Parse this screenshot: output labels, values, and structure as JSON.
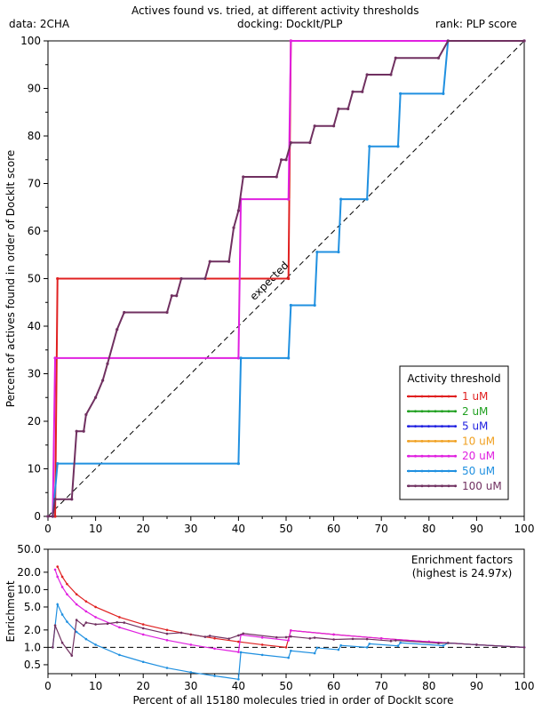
{
  "header": {
    "title": "Actives found vs. tried, at different activity thresholds",
    "data_label": "data: 2CHA",
    "docking_label": "docking: DockIt/PLP",
    "rank_label": "rank: PLP score"
  },
  "chart_data": [
    {
      "type": "line",
      "xlabel": "",
      "ylabel": "Percent of actives found in order of DockIt score",
      "xlim": [
        0,
        100
      ],
      "ylim": [
        0,
        100
      ],
      "xticks": [
        "0",
        "10",
        "20",
        "30",
        "40",
        "50",
        "60",
        "70",
        "80",
        "90",
        "100"
      ],
      "yticks": [
        "0",
        "10",
        "20",
        "30",
        "40",
        "50",
        "60",
        "70",
        "80",
        "90",
        "100"
      ],
      "annotation": "expected",
      "legend_title": "Activity threshold",
      "legend_placement": "bottom-right",
      "series": [
        {
          "name": "1 uM",
          "color": "#e02020",
          "points": [
            [
              0,
              0
            ],
            [
              1.5,
              0
            ],
            [
              2,
              50
            ],
            [
              50.5,
              50
            ],
            [
              51,
              100
            ],
            [
              100,
              100
            ]
          ]
        },
        {
          "name": "2 uM",
          "color": "#20a020",
          "points": []
        },
        {
          "name": "5 uM",
          "color": "#2020e0",
          "points": []
        },
        {
          "name": "10 uM",
          "color": "#f0a020",
          "points": []
        },
        {
          "name": "20 uM",
          "color": "#e020e0",
          "points": [
            [
              0,
              0
            ],
            [
              1,
              0
            ],
            [
              1.5,
              33.3
            ],
            [
              40,
              33.3
            ],
            [
              40.5,
              66.7
            ],
            [
              50.5,
              66.7
            ],
            [
              51,
              100
            ],
            [
              100,
              100
            ]
          ]
        },
        {
          "name": "50 uM",
          "color": "#2090e0",
          "points": [
            [
              0,
              0
            ],
            [
              1,
              0
            ],
            [
              2,
              11.1
            ],
            [
              40,
              11.1
            ],
            [
              40.5,
              33.3
            ],
            [
              50.5,
              33.3
            ],
            [
              51,
              44.4
            ],
            [
              56,
              44.4
            ],
            [
              56.5,
              55.6
            ],
            [
              61,
              55.6
            ],
            [
              61.5,
              66.7
            ],
            [
              67,
              66.7
            ],
            [
              67.5,
              77.8
            ],
            [
              73.5,
              77.8
            ],
            [
              74,
              88.9
            ],
            [
              83,
              88.9
            ],
            [
              84,
              100
            ],
            [
              100,
              100
            ]
          ]
        },
        {
          "name": "100 uM",
          "color": "#703060",
          "points": [
            [
              0,
              0
            ],
            [
              1,
              0
            ],
            [
              1.5,
              3.6
            ],
            [
              5,
              3.6
            ],
            [
              6,
              17.9
            ],
            [
              7.5,
              17.9
            ],
            [
              8,
              21.4
            ],
            [
              10,
              25
            ],
            [
              11.5,
              28.6
            ],
            [
              12.5,
              32.1
            ],
            [
              14.5,
              39.3
            ],
            [
              16,
              42.9
            ],
            [
              25,
              42.9
            ],
            [
              26,
              46.4
            ],
            [
              27,
              46.4
            ],
            [
              28,
              50
            ],
            [
              33,
              50
            ],
            [
              34,
              53.6
            ],
            [
              38,
              53.6
            ],
            [
              39,
              60.7
            ],
            [
              40,
              64.3
            ],
            [
              41,
              71.4
            ],
            [
              48,
              71.4
            ],
            [
              49,
              75
            ],
            [
              50,
              75
            ],
            [
              51,
              78.6
            ],
            [
              55,
              78.6
            ],
            [
              56,
              82.1
            ],
            [
              60,
              82.1
            ],
            [
              61,
              85.7
            ],
            [
              63,
              85.7
            ],
            [
              64,
              89.3
            ],
            [
              66,
              89.3
            ],
            [
              67,
              92.9
            ],
            [
              72,
              92.9
            ],
            [
              73,
              96.4
            ],
            [
              82,
              96.4
            ],
            [
              84,
              100
            ],
            [
              100,
              100
            ]
          ]
        }
      ]
    },
    {
      "type": "line",
      "title": "Enrichment factors",
      "subtitle": "(highest is 24.97x)",
      "xlabel": "Percent of all 15180 molecules tried in order of DockIt score",
      "ylabel": "Enrichment",
      "xlim": [
        0,
        100
      ],
      "ylim": [
        0.35,
        50
      ],
      "yscale": "log",
      "xticks": [
        "0",
        "10",
        "20",
        "30",
        "40",
        "50",
        "60",
        "70",
        "80",
        "90",
        "100"
      ],
      "yticks": [
        "0.5",
        "1.0",
        "2.0",
        "5.0",
        "10.0",
        "20.0",
        "50.0"
      ],
      "series": [
        {
          "name": "1 uM",
          "color": "#e02020",
          "points": [
            [
              2,
              24.97
            ],
            [
              3,
              16.7
            ],
            [
              4,
              12.5
            ],
            [
              6,
              8.3
            ],
            [
              8,
              6.25
            ],
            [
              10,
              5
            ],
            [
              15,
              3.33
            ],
            [
              20,
              2.5
            ],
            [
              25,
              2
            ],
            [
              30,
              1.67
            ],
            [
              35,
              1.43
            ],
            [
              40,
              1.25
            ],
            [
              45,
              1.11
            ],
            [
              50,
              1
            ],
            [
              51,
              1.96
            ],
            [
              60,
              1.67
            ],
            [
              70,
              1.43
            ],
            [
              80,
              1.25
            ],
            [
              90,
              1.11
            ],
            [
              100,
              1
            ]
          ]
        },
        {
          "name": "20 uM",
          "color": "#e020e0",
          "points": [
            [
              1.5,
              22.2
            ],
            [
              2,
              16.7
            ],
            [
              3,
              11.1
            ],
            [
              4,
              8.3
            ],
            [
              6,
              5.55
            ],
            [
              8,
              4.2
            ],
            [
              10,
              3.33
            ],
            [
              15,
              2.22
            ],
            [
              20,
              1.67
            ],
            [
              25,
              1.33
            ],
            [
              30,
              1.11
            ],
            [
              35,
              0.95
            ],
            [
              40,
              0.83
            ],
            [
              40.5,
              1.65
            ],
            [
              45,
              1.48
            ],
            [
              50.5,
              1.32
            ],
            [
              51,
              1.96
            ],
            [
              60,
              1.67
            ],
            [
              70,
              1.43
            ],
            [
              80,
              1.25
            ],
            [
              90,
              1.11
            ],
            [
              100,
              1
            ]
          ]
        },
        {
          "name": "50 uM",
          "color": "#2090e0",
          "points": [
            [
              1,
              1
            ],
            [
              2,
              5.55
            ],
            [
              3,
              3.7
            ],
            [
              4,
              2.78
            ],
            [
              6,
              1.85
            ],
            [
              8,
              1.39
            ],
            [
              10,
              1.11
            ],
            [
              15,
              0.74
            ],
            [
              20,
              0.56
            ],
            [
              25,
              0.44
            ],
            [
              30,
              0.37
            ],
            [
              35,
              0.32
            ],
            [
              40,
              0.28
            ],
            [
              40.5,
              0.82
            ],
            [
              45,
              0.74
            ],
            [
              50.5,
              0.66
            ],
            [
              51,
              0.87
            ],
            [
              56,
              0.79
            ],
            [
              56.5,
              0.98
            ],
            [
              61,
              0.91
            ],
            [
              61.5,
              1.08
            ],
            [
              67,
              1
            ],
            [
              67.5,
              1.15
            ],
            [
              73.5,
              1.06
            ],
            [
              74,
              1.2
            ],
            [
              83,
              1.07
            ],
            [
              84,
              1.19
            ],
            [
              90,
              1.11
            ],
            [
              100,
              1
            ]
          ]
        },
        {
          "name": "100 uM",
          "color": "#703060",
          "points": [
            [
              1,
              1
            ],
            [
              1.5,
              2.4
            ],
            [
              3,
              1.2
            ],
            [
              5,
              0.72
            ],
            [
              6,
              2.98
            ],
            [
              7.5,
              2.38
            ],
            [
              8,
              2.68
            ],
            [
              10,
              2.5
            ],
            [
              12.5,
              2.57
            ],
            [
              14.5,
              2.71
            ],
            [
              16,
              2.68
            ],
            [
              20,
              2.14
            ],
            [
              25,
              1.72
            ],
            [
              28,
              1.79
            ],
            [
              33,
              1.52
            ],
            [
              34,
              1.58
            ],
            [
              38,
              1.41
            ],
            [
              40,
              1.61
            ],
            [
              41,
              1.74
            ],
            [
              48,
              1.49
            ],
            [
              50,
              1.5
            ],
            [
              51,
              1.54
            ],
            [
              55,
              1.43
            ],
            [
              56,
              1.47
            ],
            [
              60,
              1.37
            ],
            [
              64,
              1.4
            ],
            [
              67,
              1.39
            ],
            [
              72,
              1.29
            ],
            [
              73,
              1.32
            ],
            [
              82,
              1.18
            ],
            [
              84,
              1.19
            ],
            [
              90,
              1.11
            ],
            [
              100,
              1
            ]
          ]
        }
      ]
    }
  ]
}
